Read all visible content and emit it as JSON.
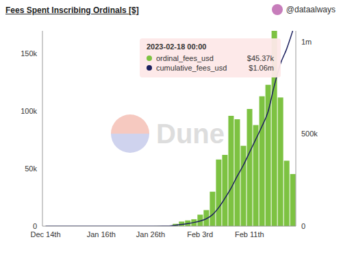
{
  "chart_data": {
    "type": "bar",
    "title": "Fees Spent Inscribing Ordinals [$]",
    "subtitle": "@dataalways",
    "watermark": "Dune",
    "categories": [
      "Dec 14th",
      null,
      null,
      null,
      null,
      null,
      null,
      null,
      null,
      "Jan 16th",
      null,
      null,
      null,
      null,
      null,
      null,
      null,
      "Jan 26th",
      null,
      null,
      null,
      null,
      null,
      null,
      null,
      "Feb 3rd",
      null,
      null,
      null,
      null,
      null,
      null,
      null,
      "Feb 11th",
      null,
      null,
      null,
      null,
      null,
      null,
      null
    ],
    "series": [
      {
        "name": "ordinal_fees_usd",
        "type": "bar",
        "color": "#7dc242",
        "values": [
          0,
          0,
          0,
          0,
          0,
          0,
          0,
          0,
          0,
          0,
          0,
          0,
          0,
          0,
          0,
          0,
          0,
          0,
          200,
          300,
          500,
          2000,
          4000,
          5000,
          6000,
          10000,
          14000,
          30000,
          58000,
          62000,
          96000,
          93000,
          70000,
          102000,
          88000,
          113000,
          123000,
          170000,
          112000,
          57000,
          45370
        ]
      },
      {
        "name": "cumulative_fees_usd",
        "type": "line",
        "axis": "y2",
        "color": "#1b1f5e",
        "values": [
          0,
          0,
          0,
          0,
          0,
          0,
          0,
          0,
          0,
          0,
          0,
          0,
          0,
          0,
          0,
          0,
          0,
          0,
          200,
          500,
          1000,
          5000,
          9000,
          14000,
          20000,
          28000,
          40000,
          62000,
          100000,
          150000,
          205000,
          270000,
          330000,
          400000,
          470000,
          540000,
          620000,
          760000,
          880000,
          960000,
          1060000
        ]
      }
    ],
    "ylim": [
      0,
      170000
    ],
    "yticks": [
      0,
      {
        "value": 50000,
        "label": "50k"
      },
      {
        "value": 100000,
        "label": "100k"
      },
      {
        "value": 150000,
        "label": "150k"
      }
    ],
    "y2lim": [
      0,
      1060000
    ],
    "y2ticks": [
      0,
      {
        "value": 500000,
        "label": "500k"
      },
      {
        "value": 1000000,
        "label": "1m"
      }
    ],
    "grid": false,
    "tooltip": {
      "title": "2023-02-18 00:00",
      "labels": [
        "$45.37k",
        "$1.06m"
      ]
    }
  }
}
